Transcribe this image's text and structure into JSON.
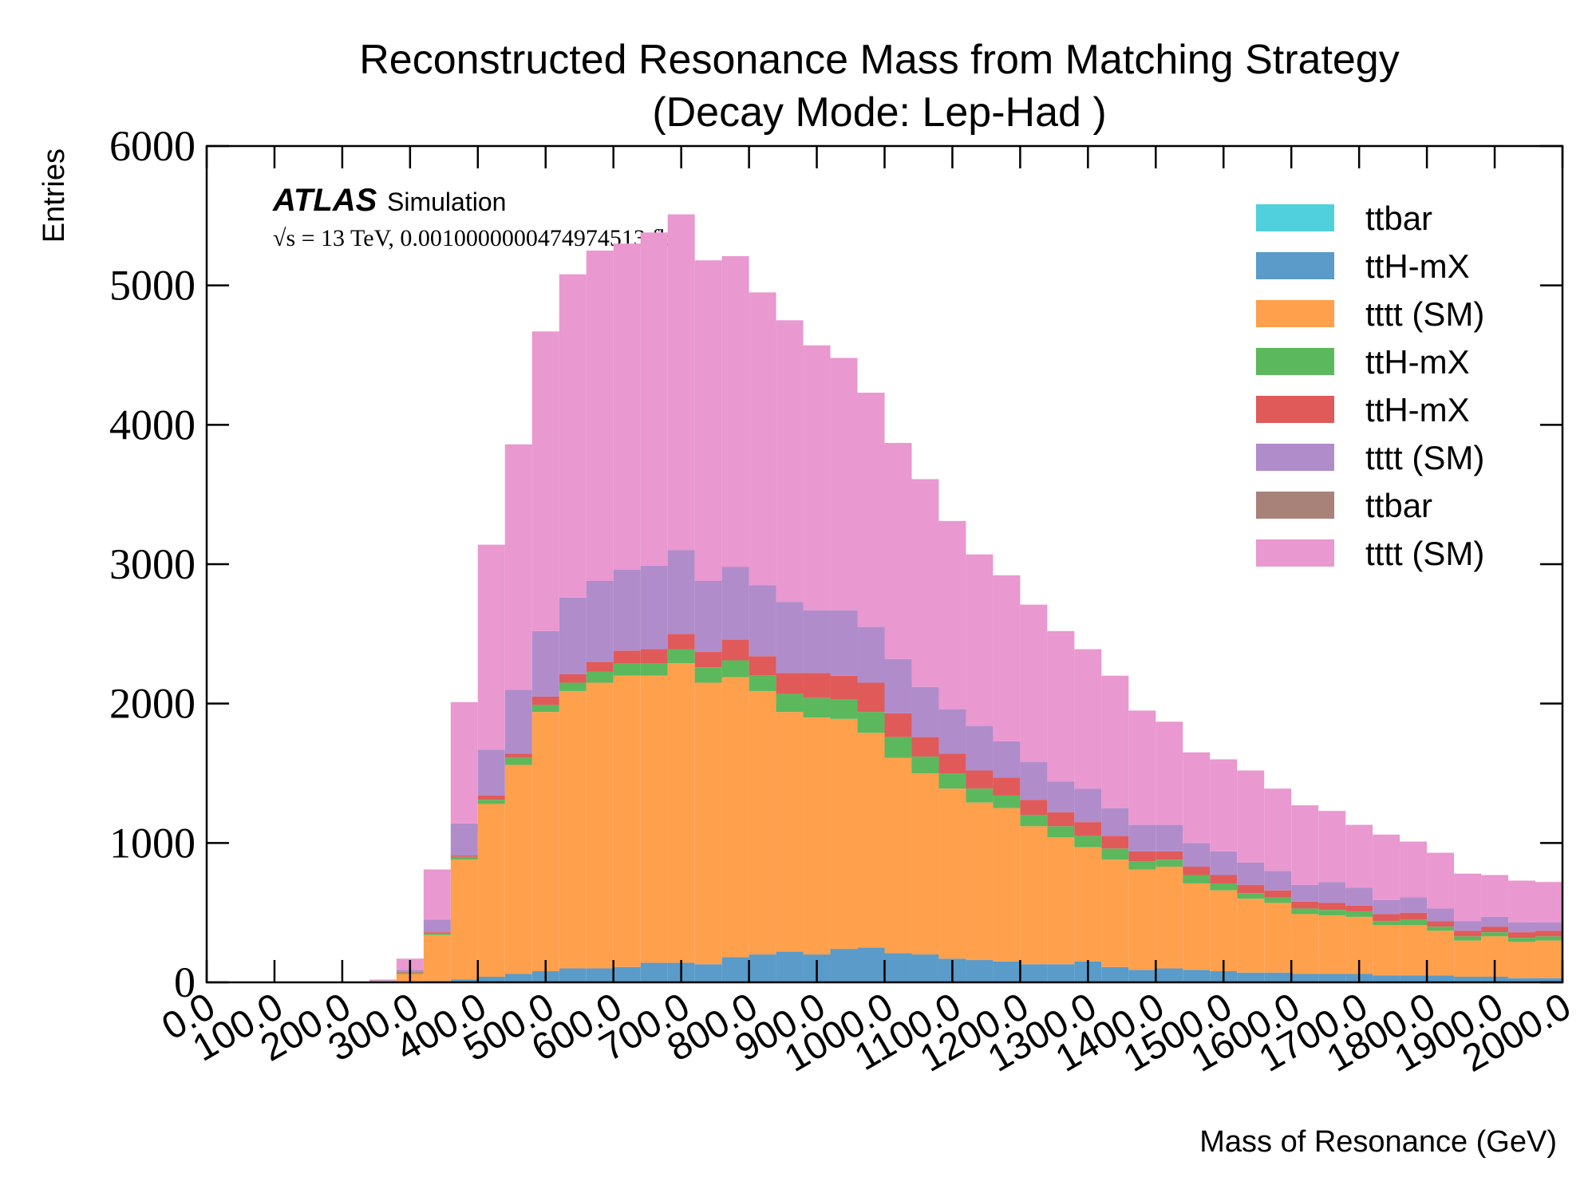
{
  "chart_data": {
    "type": "stacked_histogram",
    "title": "Reconstructed Resonance Mass from Matching Strategy",
    "subtitle": "(Decay Mode: Lep-Had )",
    "x_label": "Mass of Resonance (GeV)",
    "y_label": "Entries",
    "experiment_label": "ATLAS",
    "status_label": "Simulation",
    "lumi_label": "√s = 13 TeV, 0.0010000000474974513 fb⁻¹",
    "legend_position": "upper right",
    "bins": [
      0,
      40,
      80,
      120,
      160,
      200,
      240,
      280,
      320,
      360,
      400,
      440,
      480,
      520,
      560,
      600,
      640,
      680,
      720,
      760,
      800,
      840,
      880,
      920,
      960,
      1000,
      1040,
      1080,
      1120,
      1160,
      1200,
      1240,
      1280,
      1320,
      1360,
      1400,
      1440,
      1480,
      1520,
      1560,
      1600,
      1640,
      1680,
      1720,
      1760,
      1800,
      1840,
      1880,
      1920,
      1960,
      2000
    ],
    "series": [
      {
        "name": "ttbar",
        "color": "#4fd0dc",
        "values": [
          0,
          0,
          0,
          0,
          0,
          0,
          0,
          0,
          0,
          0,
          0,
          0,
          0,
          0,
          0,
          0,
          0,
          0,
          0,
          0,
          0,
          0,
          0,
          0,
          0,
          0,
          0,
          0,
          0,
          0,
          0,
          0,
          0,
          0,
          0,
          0,
          0,
          0,
          0,
          0,
          0,
          0,
          0,
          0,
          0,
          0,
          0,
          0,
          0,
          0
        ]
      },
      {
        "name": "ttH-mX",
        "color": "#5a9bc9",
        "values": [
          0,
          0,
          0,
          0,
          0,
          0,
          0,
          5,
          10,
          20,
          40,
          60,
          80,
          100,
          100,
          110,
          140,
          140,
          130,
          180,
          200,
          220,
          200,
          240,
          250,
          210,
          200,
          170,
          160,
          150,
          130,
          130,
          150,
          110,
          90,
          100,
          90,
          80,
          70,
          70,
          60,
          60,
          60,
          50,
          50,
          50,
          40,
          40,
          30,
          30
        ]
      },
      {
        "name": "tttt (SM)",
        "color": "#ffa04d",
        "values": [
          0,
          0,
          0,
          0,
          0,
          0,
          10,
          55,
          330,
          860,
          1240,
          1500,
          1860,
          1990,
          2050,
          2090,
          2060,
          2150,
          2020,
          2010,
          1890,
          1720,
          1700,
          1650,
          1540,
          1400,
          1300,
          1220,
          1130,
          1100,
          990,
          910,
          820,
          770,
          720,
          730,
          620,
          580,
          530,
          500,
          430,
          420,
          410,
          360,
          360,
          320,
          260,
          290,
          260,
          270
        ]
      },
      {
        "name": "ttH-mX",
        "color": "#5cb85c",
        "values": [
          0,
          0,
          0,
          0,
          0,
          0,
          0,
          10,
          10,
          20,
          30,
          50,
          50,
          60,
          80,
          90,
          90,
          100,
          110,
          120,
          110,
          130,
          140,
          140,
          150,
          150,
          120,
          110,
          100,
          90,
          80,
          80,
          80,
          80,
          60,
          50,
          60,
          50,
          40,
          40,
          40,
          40,
          40,
          30,
          40,
          30,
          30,
          30,
          30,
          30
        ]
      },
      {
        "name": "ttH-mX",
        "color": "#e05a5a",
        "values": [
          0,
          0,
          0,
          0,
          0,
          0,
          0,
          5,
          10,
          10,
          30,
          30,
          60,
          60,
          70,
          90,
          100,
          110,
          110,
          150,
          140,
          150,
          180,
          170,
          210,
          170,
          140,
          140,
          130,
          130,
          110,
          100,
          100,
          90,
          70,
          60,
          60,
          60,
          60,
          50,
          50,
          50,
          40,
          50,
          50,
          40,
          40,
          40,
          40,
          40
        ]
      },
      {
        "name": "tttt (SM)",
        "color": "#b08ccb",
        "values": [
          0,
          0,
          0,
          0,
          0,
          0,
          5,
          15,
          90,
          230,
          330,
          460,
          470,
          550,
          580,
          580,
          600,
          600,
          510,
          520,
          510,
          510,
          450,
          470,
          400,
          390,
          360,
          320,
          320,
          260,
          270,
          220,
          240,
          200,
          190,
          190,
          170,
          170,
          160,
          140,
          120,
          150,
          130,
          100,
          110,
          90,
          70,
          70,
          70,
          60
        ]
      },
      {
        "name": "ttbar",
        "color": "#a88278",
        "values": [
          0,
          0,
          0,
          0,
          0,
          0,
          0,
          0,
          0,
          0,
          0,
          0,
          0,
          0,
          0,
          0,
          0,
          0,
          0,
          0,
          0,
          0,
          0,
          0,
          0,
          0,
          0,
          0,
          0,
          0,
          0,
          0,
          0,
          0,
          0,
          0,
          0,
          0,
          0,
          0,
          0,
          0,
          0,
          0,
          0,
          0,
          0,
          0,
          0,
          0
        ]
      },
      {
        "name": "tttt (SM)",
        "color": "#e998d0",
        "values": [
          0,
          0,
          0,
          0,
          0,
          0,
          5,
          80,
          360,
          870,
          1470,
          1760,
          2150,
          2320,
          2370,
          2340,
          2390,
          2410,
          2300,
          2230,
          2100,
          2020,
          1900,
          1810,
          1680,
          1550,
          1490,
          1350,
          1230,
          1190,
          1130,
          1080,
          1000,
          950,
          820,
          740,
          650,
          660,
          660,
          590,
          570,
          510,
          450,
          470,
          400,
          400,
          340,
          300,
          300,
          290
        ]
      }
    ],
    "xlim": [
      0,
      2000
    ],
    "xticks": [
      {
        "value": 0,
        "label": "0.0"
      },
      {
        "value": 100,
        "label": "100.0"
      },
      {
        "value": 200,
        "label": "200.0"
      },
      {
        "value": 300,
        "label": "300.0"
      },
      {
        "value": 400,
        "label": "400.0"
      },
      {
        "value": 500,
        "label": "500.0"
      },
      {
        "value": 600,
        "label": "600.0"
      },
      {
        "value": 700,
        "label": "700.0"
      },
      {
        "value": 800,
        "label": "800.0"
      },
      {
        "value": 900,
        "label": "900.0"
      },
      {
        "value": 1000,
        "label": "1000.0"
      },
      {
        "value": 1100,
        "label": "1100.0"
      },
      {
        "value": 1200,
        "label": "1200.0"
      },
      {
        "value": 1300,
        "label": "1300.0"
      },
      {
        "value": 1400,
        "label": "1400.0"
      },
      {
        "value": 1500,
        "label": "1500.0"
      },
      {
        "value": 1600,
        "label": "1600.0"
      },
      {
        "value": 1700,
        "label": "1700.0"
      },
      {
        "value": 1800,
        "label": "1800.0"
      },
      {
        "value": 1900,
        "label": "1900.0"
      },
      {
        "value": 2000,
        "label": "2000.0"
      }
    ],
    "ylim": [
      0,
      6000
    ],
    "yticks": [
      0,
      1000,
      2000,
      3000,
      4000,
      5000,
      6000
    ]
  }
}
